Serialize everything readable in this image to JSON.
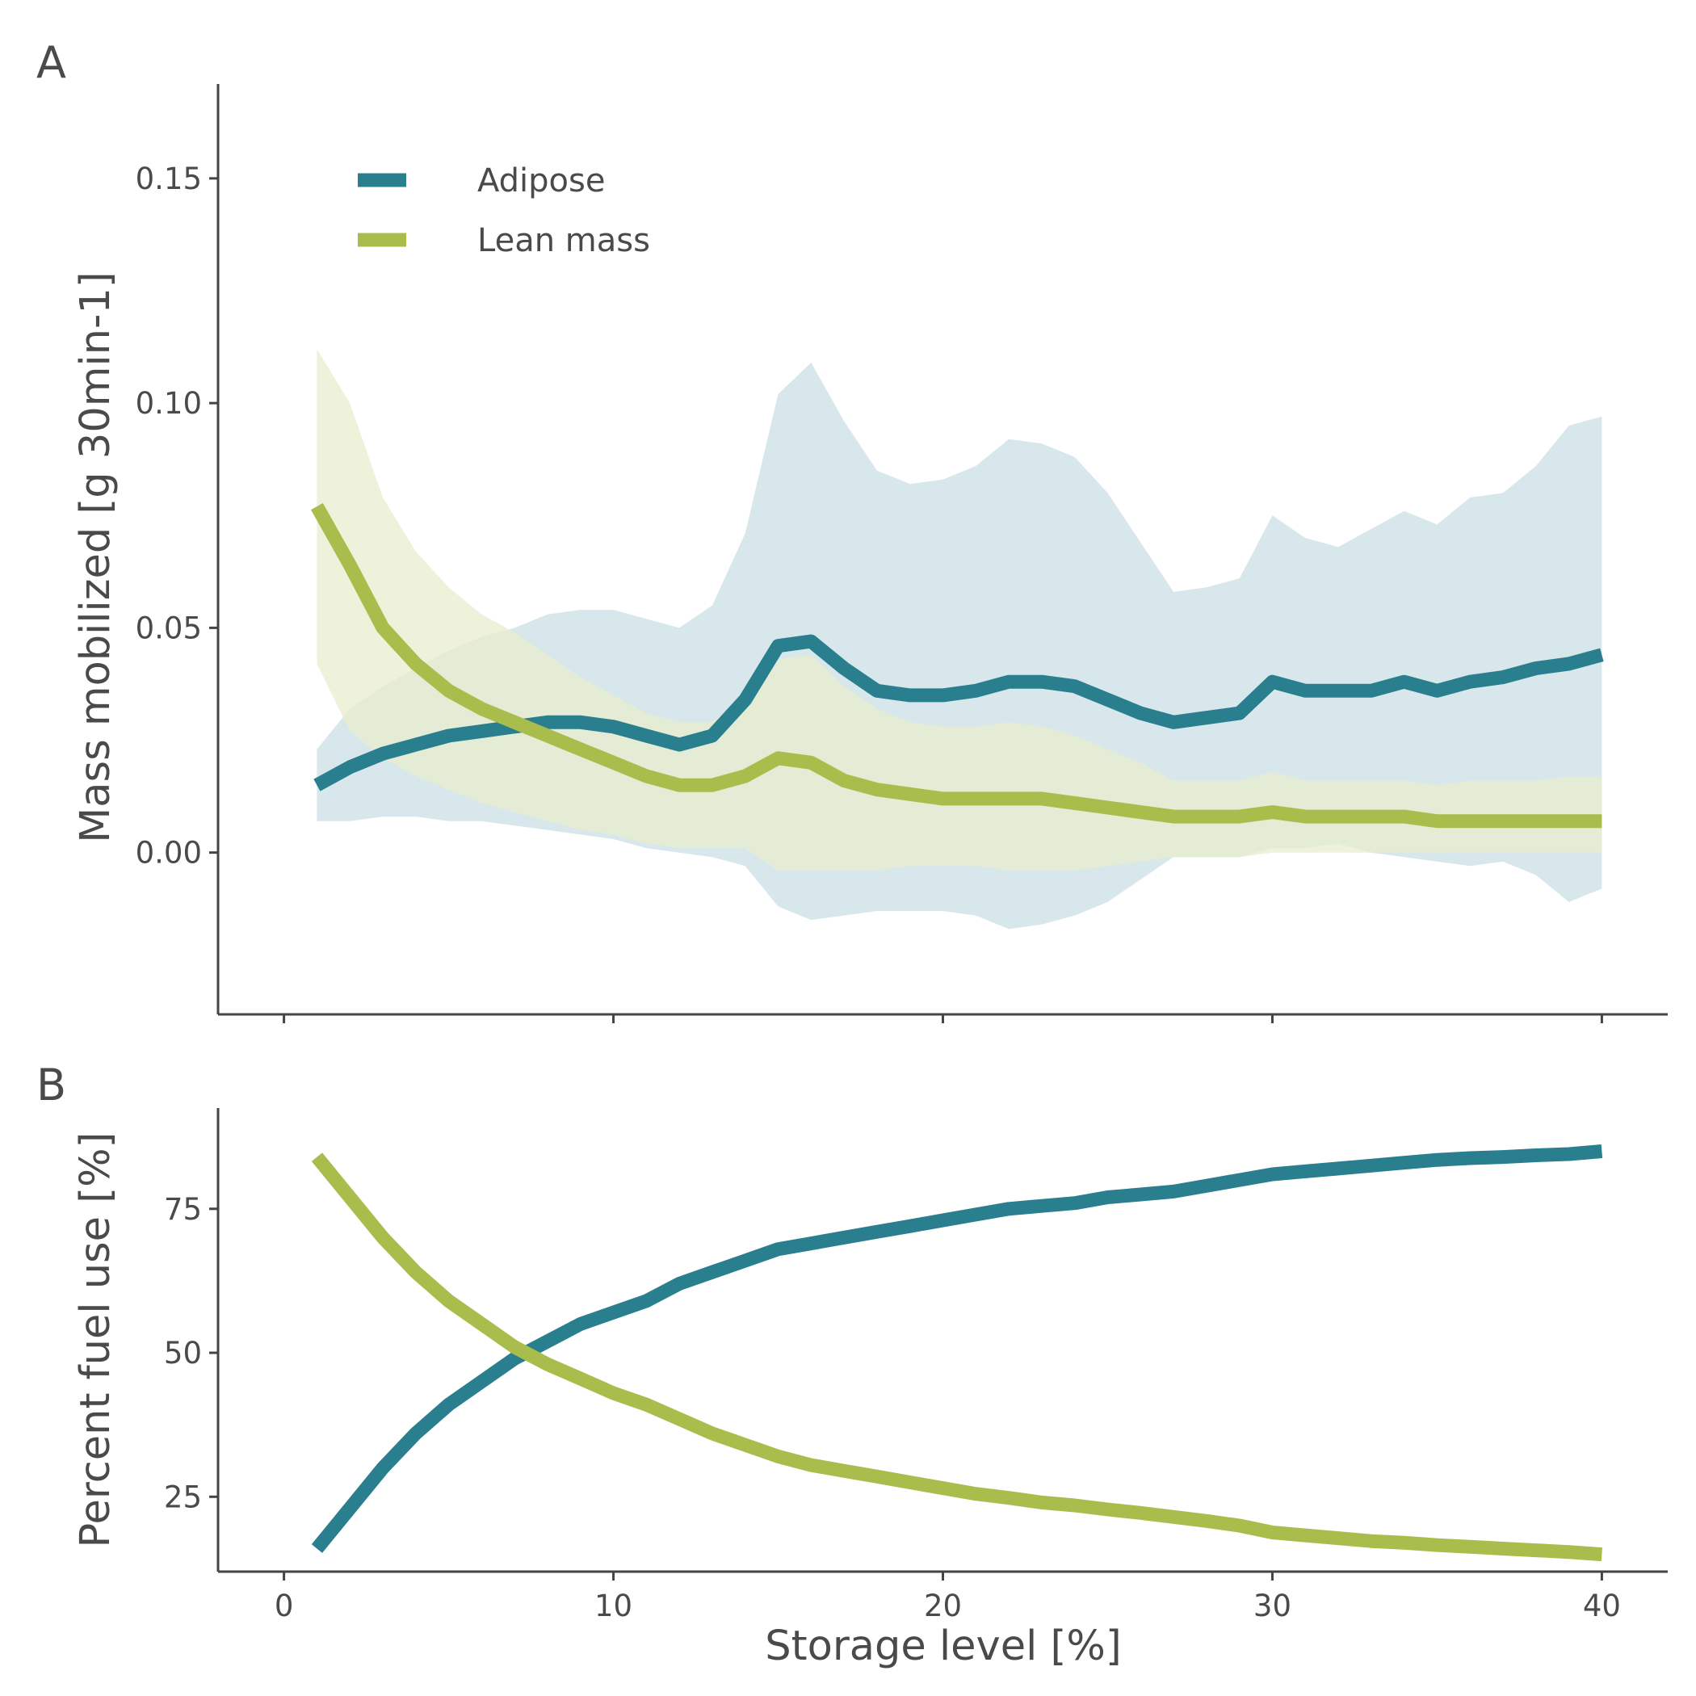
{
  "chart_data": [
    {
      "panel": "A",
      "type": "line",
      "xlabel": "",
      "ylabel": "Mass mobilized [g 30min-1]",
      "xlim": [
        -2,
        42
      ],
      "ylim": [
        -0.036,
        0.171
      ],
      "yticks": [
        0.0,
        0.05,
        0.1,
        0.15
      ],
      "ytick_labels": [
        "0.00",
        "0.05",
        "0.10",
        "0.15"
      ],
      "xticks": [
        0,
        10,
        20,
        30,
        40
      ],
      "grid": false,
      "legend_position": "top-left",
      "legend": [
        "Adipose",
        "Lean mass"
      ],
      "x": [
        1,
        2,
        3,
        4,
        5,
        6,
        7,
        8,
        9,
        10,
        11,
        12,
        13,
        14,
        15,
        16,
        17,
        18,
        19,
        20,
        21,
        22,
        23,
        24,
        25,
        26,
        27,
        28,
        29,
        30,
        31,
        32,
        33,
        34,
        35,
        36,
        37,
        38,
        39,
        40
      ],
      "series": [
        {
          "name": "Adipose",
          "color": "#2a7f8f",
          "band_color": "#c9dfe5",
          "values": [
            0.015,
            0.019,
            0.022,
            0.024,
            0.026,
            0.027,
            0.028,
            0.029,
            0.029,
            0.028,
            0.026,
            0.024,
            0.026,
            0.034,
            0.046,
            0.047,
            0.041,
            0.036,
            0.035,
            0.035,
            0.036,
            0.038,
            0.038,
            0.037,
            0.034,
            0.031,
            0.029,
            0.03,
            0.031,
            0.038,
            0.036,
            0.036,
            0.036,
            0.038,
            0.036,
            0.038,
            0.039,
            0.041,
            0.042,
            0.044
          ],
          "lower": [
            0.007,
            0.007,
            0.008,
            0.008,
            0.007,
            0.007,
            0.006,
            0.005,
            0.004,
            0.003,
            0.001,
            0.0,
            -0.001,
            -0.003,
            -0.012,
            -0.015,
            -0.014,
            -0.013,
            -0.013,
            -0.013,
            -0.014,
            -0.017,
            -0.016,
            -0.014,
            -0.011,
            -0.006,
            -0.001,
            -0.001,
            -0.001,
            0.001,
            0.001,
            0.002,
            0.0,
            -0.001,
            -0.002,
            -0.003,
            -0.002,
            -0.005,
            -0.011,
            -0.008
          ],
          "upper": [
            0.023,
            0.032,
            0.037,
            0.041,
            0.045,
            0.048,
            0.05,
            0.053,
            0.054,
            0.054,
            0.052,
            0.05,
            0.055,
            0.071,
            0.102,
            0.109,
            0.096,
            0.085,
            0.082,
            0.083,
            0.086,
            0.092,
            0.091,
            0.088,
            0.08,
            0.069,
            0.058,
            0.059,
            0.061,
            0.075,
            0.07,
            0.068,
            0.072,
            0.076,
            0.073,
            0.079,
            0.08,
            0.086,
            0.095,
            0.097
          ]
        },
        {
          "name": "Lean mass",
          "color": "#a9bd4c",
          "band_color": "#e8eecf",
          "values": [
            0.077,
            0.064,
            0.05,
            0.042,
            0.036,
            0.032,
            0.029,
            0.026,
            0.023,
            0.02,
            0.017,
            0.015,
            0.015,
            0.017,
            0.021,
            0.02,
            0.016,
            0.014,
            0.013,
            0.012,
            0.012,
            0.012,
            0.012,
            0.011,
            0.01,
            0.009,
            0.008,
            0.008,
            0.008,
            0.009,
            0.008,
            0.008,
            0.008,
            0.008,
            0.007,
            0.007,
            0.007,
            0.007,
            0.007,
            0.007
          ],
          "lower": [
            0.042,
            0.027,
            0.021,
            0.017,
            0.014,
            0.011,
            0.009,
            0.007,
            0.005,
            0.004,
            0.002,
            0.001,
            0.001,
            0.001,
            -0.004,
            -0.004,
            -0.004,
            -0.004,
            -0.003,
            -0.003,
            -0.003,
            -0.004,
            -0.004,
            -0.004,
            -0.003,
            -0.002,
            -0.001,
            -0.001,
            -0.001,
            0.0,
            0.0,
            0.0,
            0.0,
            0.0,
            0.0,
            0.0,
            0.0,
            0.0,
            0.0,
            0.0
          ],
          "upper": [
            0.112,
            0.1,
            0.079,
            0.067,
            0.059,
            0.053,
            0.049,
            0.044,
            0.039,
            0.035,
            0.031,
            0.029,
            0.029,
            0.035,
            0.043,
            0.044,
            0.037,
            0.032,
            0.029,
            0.028,
            0.028,
            0.029,
            0.028,
            0.026,
            0.023,
            0.02,
            0.016,
            0.016,
            0.016,
            0.018,
            0.016,
            0.016,
            0.016,
            0.016,
            0.015,
            0.016,
            0.016,
            0.016,
            0.017,
            0.017
          ]
        }
      ]
    },
    {
      "panel": "B",
      "type": "line",
      "xlabel": "Storage level [%]",
      "ylabel": "Percent fuel use [%]",
      "xlim": [
        -2,
        42
      ],
      "ylim": [
        12,
        92.5
      ],
      "yticks": [
        25,
        50,
        75
      ],
      "ytick_labels": [
        "25",
        "50",
        "75"
      ],
      "xticks": [
        0,
        10,
        20,
        30,
        40
      ],
      "xtick_labels": [
        "0",
        "10",
        "20",
        "30",
        "40"
      ],
      "grid": false,
      "x": [
        1,
        2,
        3,
        4,
        5,
        6,
        7,
        8,
        9,
        10,
        11,
        12,
        13,
        14,
        15,
        16,
        17,
        18,
        19,
        20,
        21,
        22,
        23,
        24,
        25,
        26,
        27,
        28,
        29,
        30,
        31,
        32,
        33,
        34,
        35,
        36,
        37,
        38,
        39,
        40
      ],
      "series": [
        {
          "name": "Adipose",
          "color": "#2a7f8f",
          "values": [
            16,
            23,
            30,
            36,
            41,
            45,
            49,
            52,
            55,
            57,
            59,
            62,
            64,
            66,
            68,
            69,
            70,
            71,
            72,
            73,
            74,
            75,
            75.5,
            76,
            77,
            77.5,
            78,
            79,
            80,
            81,
            81.5,
            82,
            82.5,
            83,
            83.5,
            83.8,
            84,
            84.3,
            84.5,
            85
          ]
        },
        {
          "name": "Lean mass",
          "color": "#a9bd4c",
          "values": [
            84,
            77,
            70,
            64,
            59,
            55,
            51,
            48,
            45.5,
            43,
            41,
            38.5,
            36,
            34,
            32,
            30.5,
            29.5,
            28.5,
            27.5,
            26.5,
            25.5,
            24.8,
            24,
            23.5,
            22.8,
            22.2,
            21.5,
            20.8,
            20,
            18.8,
            18.3,
            17.8,
            17.3,
            17,
            16.6,
            16.3,
            16,
            15.7,
            15.4,
            15
          ]
        }
      ]
    }
  ]
}
